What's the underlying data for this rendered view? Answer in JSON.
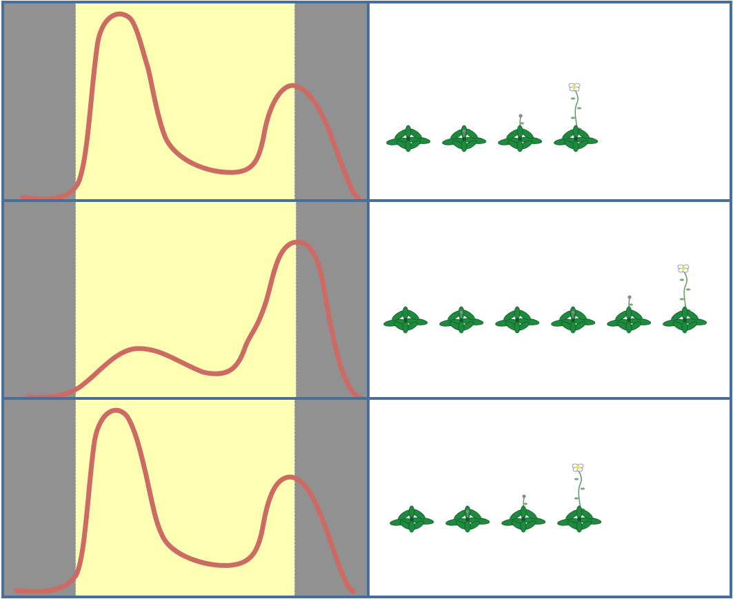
{
  "diagram": {
    "panels": [
      {
        "curve": "two-peaks-first-taller",
        "plants": [
          "rosette",
          "rosette-bud",
          "rosette-short-stem",
          "rosette-flowering"
        ]
      },
      {
        "curve": "two-peaks-second-taller",
        "plants": [
          "rosette",
          "rosette-bud",
          "rosette",
          "rosette-bud",
          "rosette-short-stem",
          "rosette-flowering"
        ]
      },
      {
        "curve": "two-peaks-first-taller",
        "plants": [
          "rosette",
          "rosette-bud",
          "rosette-short-stem",
          "rosette-flowering"
        ]
      }
    ],
    "colors": {
      "border": "#4a6e9a",
      "dark_period": "#919191",
      "light_period": "#ffffb3",
      "curve": "#cc6a63",
      "leaf": "#1e8a3e",
      "leaf_dark": "#0f5a28",
      "stem": "#6a9a6a",
      "flower": "#ffffff",
      "flower_center": "#f3e23a"
    }
  }
}
